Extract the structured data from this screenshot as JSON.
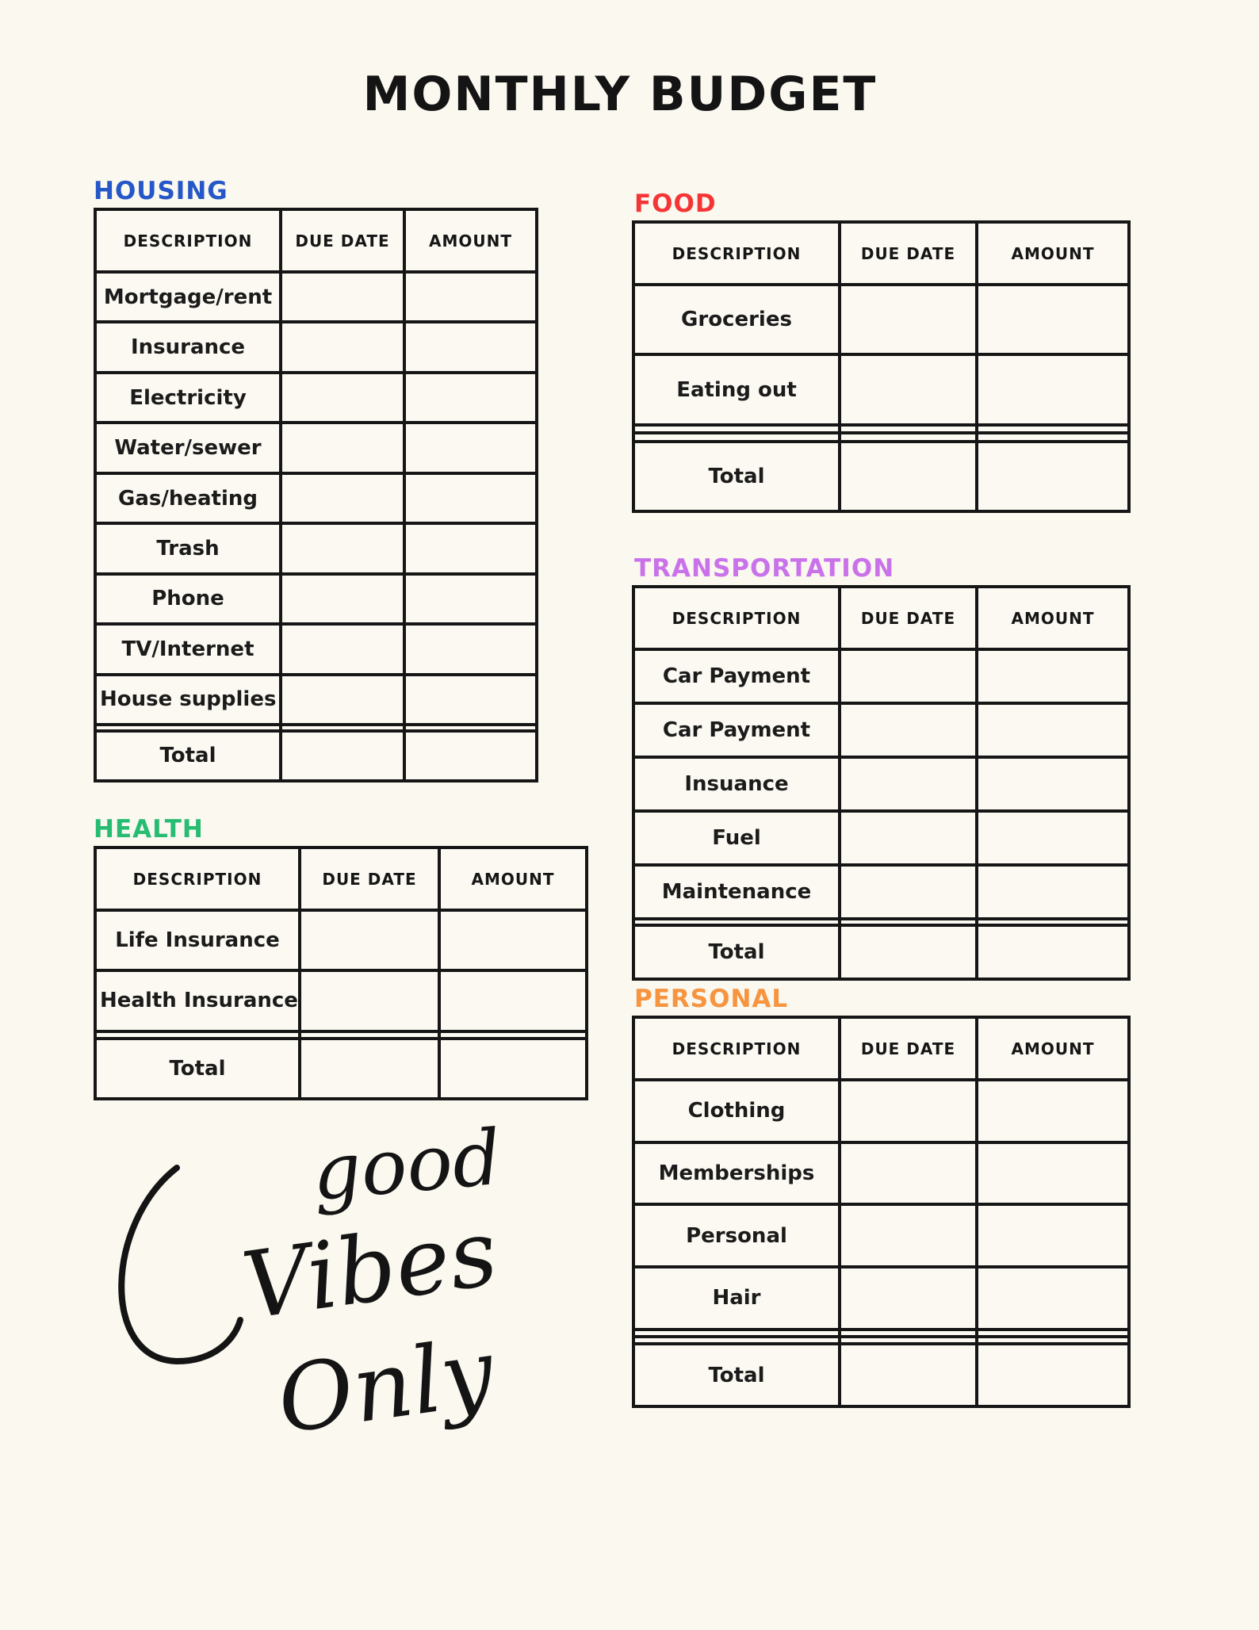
{
  "page": {
    "title": "MONTHLY BUDGET",
    "background": "#FAF8EF",
    "ink": "#161616"
  },
  "table_columns": [
    "DESCRIPTION",
    "DUE DATE",
    "AMOUNT"
  ],
  "sections": [
    {
      "id": "housing",
      "title": "HOUSING",
      "color": "#2557C8",
      "rows": [
        "Mortgage/rent",
        "Insurance",
        "Electricity",
        "Water/sewer",
        "Gas/heating",
        "Trash",
        "Phone",
        "TV/Internet",
        "House supplies",
        "",
        "Total"
      ]
    },
    {
      "id": "food",
      "title": "FOOD",
      "color": "#F53535",
      "rows": [
        "Groceries",
        "Eating out",
        "",
        "",
        "Total"
      ]
    },
    {
      "id": "transportation",
      "title": "TRANSPORTATION",
      "color": "#C972EA",
      "rows": [
        "Car Payment",
        "Car Payment",
        "Insuance",
        "Fuel",
        "Maintenance",
        "",
        "Total"
      ]
    },
    {
      "id": "health",
      "title": "HEALTH",
      "color": "#27BC72",
      "rows": [
        "Life Insurance",
        "Health Insurance",
        "",
        "Total"
      ]
    },
    {
      "id": "personal",
      "title": "PERSONAL",
      "color": "#F6943F",
      "rows": [
        "Clothing",
        "Memberships",
        "Personal",
        "Hair",
        "",
        "",
        "Total"
      ]
    }
  ],
  "decoration": {
    "line1": "good",
    "line2": "Vibes",
    "line3": "Only"
  }
}
